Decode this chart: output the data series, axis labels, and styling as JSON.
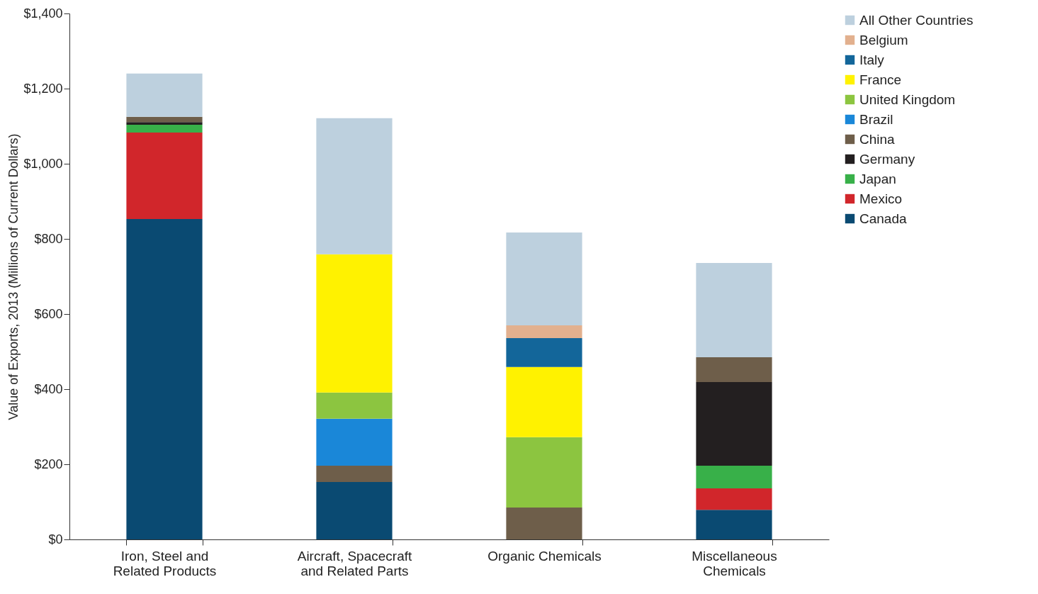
{
  "chart_data": {
    "type": "bar",
    "stacked": true,
    "ylabel": "Value of Exports, 2013 (Millions of Current Dollars)",
    "categories": [
      "Iron, Steel and Related Products",
      "Aircraft, Spacecraft and Related Parts",
      "Organic Chemicals",
      "Miscellaneous Chemicals"
    ],
    "series": [
      {
        "name": "Canada",
        "color": "#0a4a72",
        "values": [
          853,
          153,
          null,
          79
        ]
      },
      {
        "name": "Mexico",
        "color": "#d1262b",
        "values": [
          230,
          null,
          null,
          57
        ]
      },
      {
        "name": "Japan",
        "color": "#38b049",
        "values": [
          21,
          null,
          null,
          60
        ]
      },
      {
        "name": "Germany",
        "color": "#231f20",
        "values": [
          7,
          null,
          null,
          223
        ]
      },
      {
        "name": "China",
        "color": "#6e5e4a",
        "values": [
          14,
          43,
          85,
          66
        ]
      },
      {
        "name": "Brazil",
        "color": "#1a87d8",
        "values": [
          null,
          125,
          null,
          null
        ]
      },
      {
        "name": "United Kingdom",
        "color": "#8cc540",
        "values": [
          null,
          70,
          187,
          null
        ]
      },
      {
        "name": "France",
        "color": "#fff200",
        "values": [
          null,
          368,
          187,
          null
        ]
      },
      {
        "name": "Italy",
        "color": "#13669a",
        "values": [
          null,
          null,
          77,
          null
        ]
      },
      {
        "name": "Belgium",
        "color": "#e2b08e",
        "values": [
          null,
          null,
          34,
          null
        ]
      },
      {
        "name": "All Other Countries",
        "color": "#bdd0de",
        "values": [
          115,
          362,
          247,
          251
        ]
      }
    ],
    "ylim": [
      0,
      1400
    ],
    "yticks": [
      {
        "value": 0,
        "label": "$0"
      },
      {
        "value": 200,
        "label": "$200"
      },
      {
        "value": 400,
        "label": "$400"
      },
      {
        "value": 600,
        "label": "$600"
      },
      {
        "value": 800,
        "label": "$800"
      },
      {
        "value": 1000,
        "label": "$1,000"
      },
      {
        "value": 1200,
        "label": "$1,200"
      },
      {
        "value": 1400,
        "label": "$1,400"
      }
    ],
    "grid": false,
    "legend": "top right"
  }
}
